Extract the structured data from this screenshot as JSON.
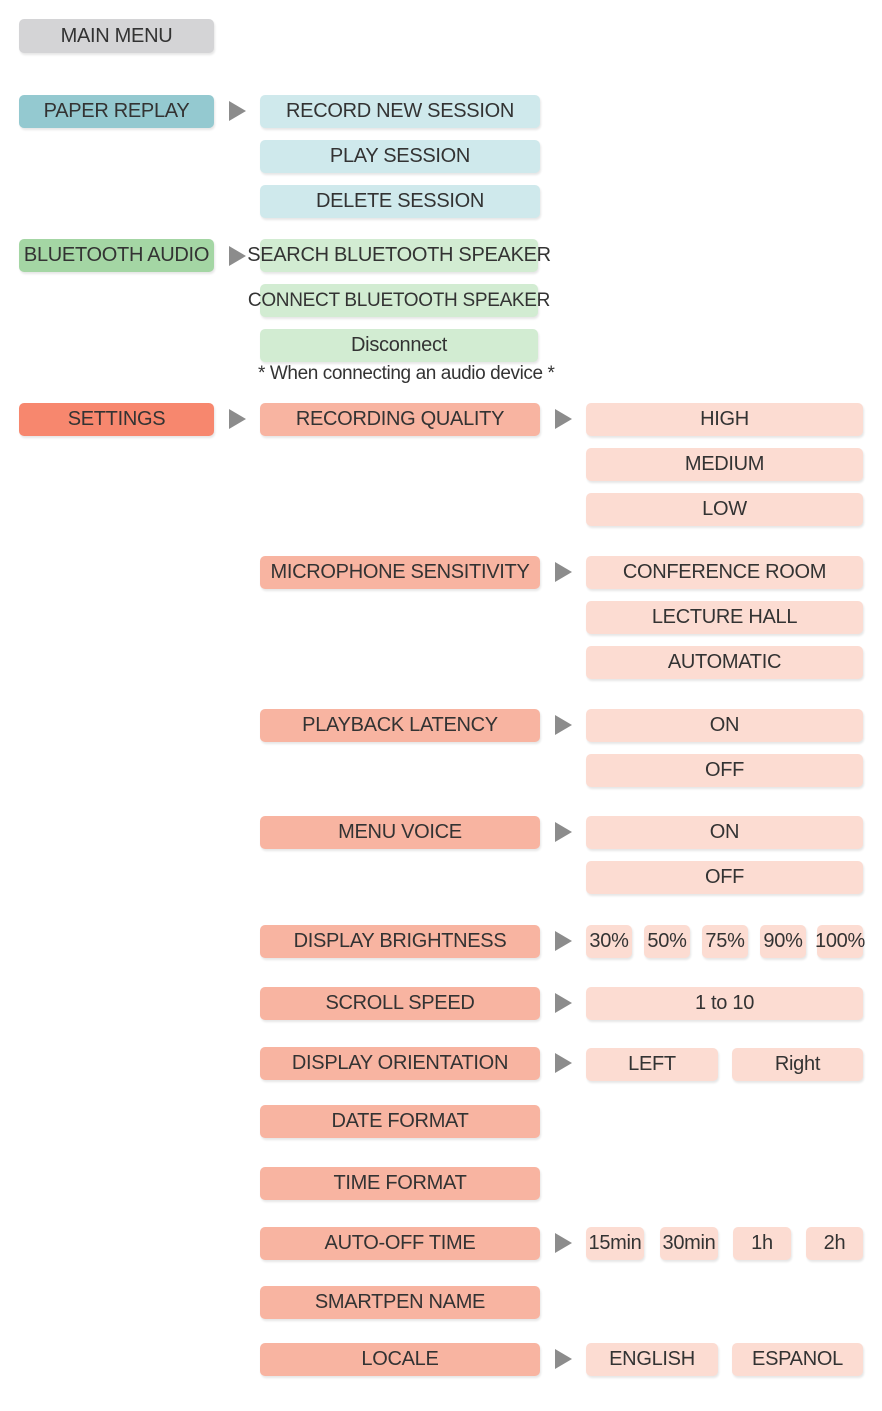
{
  "main_menu": "MAIN MENU",
  "paper_replay": {
    "label": "PAPER REPLAY",
    "items": [
      "RECORD NEW SESSION",
      "PLAY SESSION",
      "DELETE SESSION"
    ]
  },
  "bluetooth_audio": {
    "label": "BLUETOOTH AUDIO",
    "items": [
      "SEARCH BLUETOOTH SPEAKER",
      "CONNECT BLUETOOTH SPEAKER",
      "Disconnect"
    ],
    "note": "* When connecting an audio device *"
  },
  "settings": {
    "label": "SETTINGS",
    "recording_quality": {
      "label": "RECORDING QUALITY",
      "options": [
        "HIGH",
        "MEDIUM",
        "LOW"
      ]
    },
    "microphone_sensitivity": {
      "label": "MICROPHONE SENSITIVITY",
      "options": [
        "CONFERENCE ROOM",
        "LECTURE HALL",
        "AUTOMATIC"
      ]
    },
    "playback_latency": {
      "label": "PLAYBACK LATENCY",
      "options": [
        "ON",
        "OFF"
      ]
    },
    "menu_voice": {
      "label": "MENU VOICE",
      "options": [
        "ON",
        "OFF"
      ]
    },
    "display_brightness": {
      "label": "DISPLAY BRIGHTNESS",
      "options": [
        "30%",
        "50%",
        "75%",
        "90%",
        "100%"
      ]
    },
    "scroll_speed": {
      "label": "SCROLL SPEED",
      "options": [
        "1 to 10"
      ]
    },
    "display_orientation": {
      "label": "DISPLAY ORIENTATION",
      "options": [
        "LEFT",
        "Right"
      ]
    },
    "date_format": {
      "label": "DATE FORMAT"
    },
    "time_format": {
      "label": "TIME FORMAT"
    },
    "auto_off_time": {
      "label": "AUTO-OFF TIME",
      "options": [
        "15min",
        "30min",
        "1h",
        "2h"
      ]
    },
    "smartpen_name": {
      "label": "SMARTPEN NAME"
    },
    "locale": {
      "label": "LOCALE",
      "options": [
        "ENGLISH",
        "ESPANOL"
      ]
    }
  }
}
